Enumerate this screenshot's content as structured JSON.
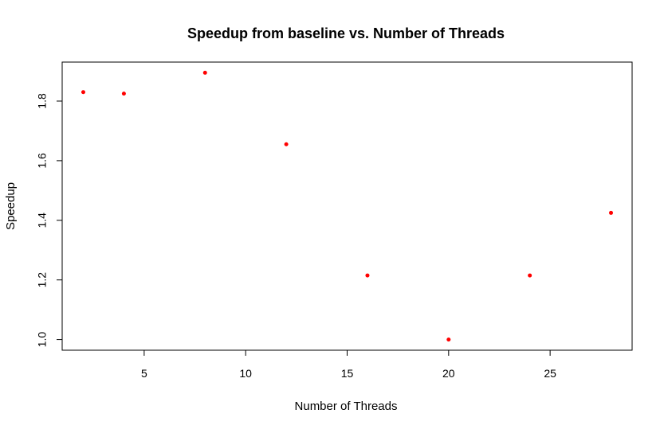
{
  "chart_data": {
    "type": "scatter",
    "title": "Speedup from baseline vs. Number of Threads",
    "xlabel": "Number of Threads",
    "ylabel": "Speedup",
    "x": [
      2,
      4,
      8,
      12,
      16,
      20,
      24,
      28
    ],
    "y": [
      1.83,
      1.825,
      1.895,
      1.655,
      1.215,
      1.0,
      1.215,
      1.425
    ],
    "xlim": [
      0.96,
      29.04
    ],
    "ylim": [
      0.9642,
      1.9308
    ],
    "xticks": [
      5,
      10,
      15,
      20,
      25
    ],
    "yticks": [
      1.0,
      1.2,
      1.4,
      1.6,
      1.8
    ],
    "xtick_labels": [
      "5",
      "10",
      "15",
      "20",
      "25"
    ],
    "ytick_labels": [
      "1.0",
      "1.2",
      "1.4",
      "1.6",
      "1.8"
    ],
    "point_color": "#ff0000",
    "grid": false,
    "legend": "none"
  }
}
